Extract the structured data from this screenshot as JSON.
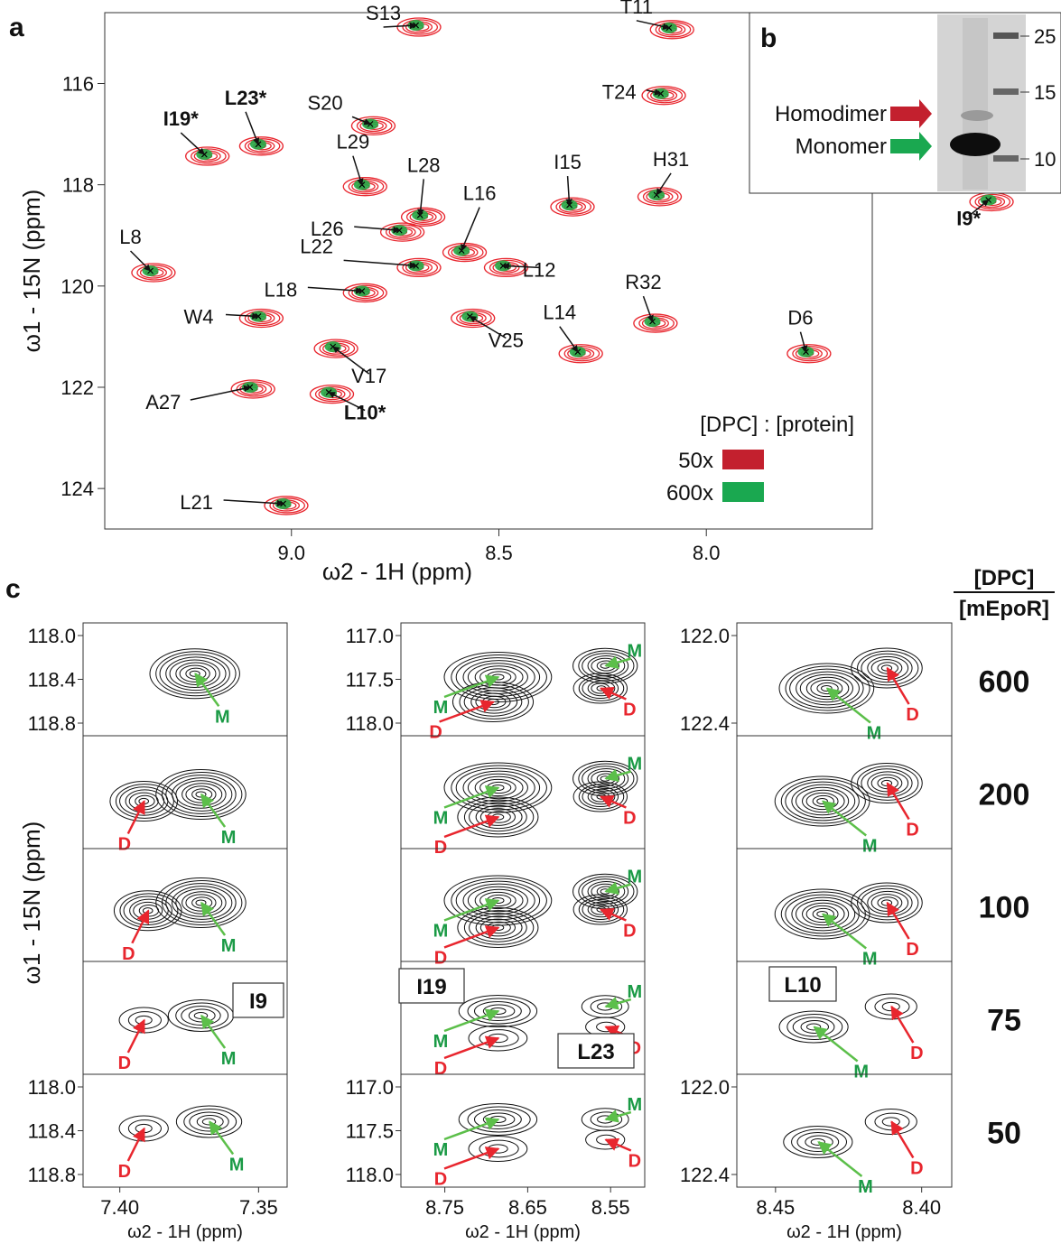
{
  "panel_labels": {
    "a": "a",
    "b": "b",
    "c": "c"
  },
  "colors": {
    "dimer": "#e8262e",
    "monomer": "#22a845",
    "contour": "#111111",
    "arrow_red": "#e8262e",
    "arrow_green": "#5cbf4a",
    "legend_50x": "#c3202e",
    "legend_600x": "#1aa850"
  },
  "chart_data": [
    {
      "type": "scatter",
      "panel": "a",
      "xlabel": "ω2 - 1H (ppm)",
      "ylabel": "ω1 - 15N (ppm)",
      "x_reversed": true,
      "y_reversed": true,
      "xlim": [
        9.45,
        7.6
      ],
      "ylim": [
        114.6,
        124.8
      ],
      "x_ticks": [
        9.0,
        8.5,
        8.0
      ],
      "y_ticks": [
        116,
        118,
        120,
        122,
        124
      ],
      "x_tick_labels": [
        "9.0",
        "8.5",
        "8.0"
      ],
      "y_tick_labels": [
        "116",
        "118",
        "120",
        "122",
        "124"
      ],
      "legend": {
        "title": "[DPC] : [protein]",
        "entries": [
          "50x",
          "600x"
        ],
        "position": "bottom-right"
      },
      "peaks": [
        {
          "label": "S13",
          "x": 8.7,
          "y": 114.85,
          "bold": false
        },
        {
          "label": "T11",
          "x": 8.09,
          "y": 114.9,
          "bold": false
        },
        {
          "label": "T24",
          "x": 8.11,
          "y": 116.2,
          "bold": false
        },
        {
          "label": "S20",
          "x": 8.81,
          "y": 116.8,
          "bold": false
        },
        {
          "label": "I19*",
          "x": 9.21,
          "y": 117.4,
          "bold": true
        },
        {
          "label": "L23*",
          "x": 9.08,
          "y": 117.2,
          "bold": true
        },
        {
          "label": "L29",
          "x": 8.83,
          "y": 118.0,
          "bold": false
        },
        {
          "label": "L28",
          "x": 8.69,
          "y": 118.6,
          "bold": false
        },
        {
          "label": "L26",
          "x": 8.74,
          "y": 118.9,
          "bold": false
        },
        {
          "label": "L16",
          "x": 8.59,
          "y": 119.3,
          "bold": false
        },
        {
          "label": "I15",
          "x": 8.33,
          "y": 118.4,
          "bold": false
        },
        {
          "label": "H31",
          "x": 8.12,
          "y": 118.2,
          "bold": false
        },
        {
          "label": "I9*",
          "x": 7.32,
          "y": 118.3,
          "bold": true
        },
        {
          "label": "L8",
          "x": 9.34,
          "y": 119.7,
          "bold": false
        },
        {
          "label": "L22",
          "x": 8.7,
          "y": 119.6,
          "bold": false
        },
        {
          "label": "L12",
          "x": 8.49,
          "y": 119.6,
          "bold": false
        },
        {
          "label": "L18",
          "x": 8.83,
          "y": 120.1,
          "bold": false
        },
        {
          "label": "W4",
          "x": 9.08,
          "y": 120.6,
          "bold": false
        },
        {
          "label": "V25",
          "x": 8.57,
          "y": 120.6,
          "bold": false
        },
        {
          "label": "R32",
          "x": 8.13,
          "y": 120.7,
          "bold": false
        },
        {
          "label": "L14",
          "x": 8.31,
          "y": 121.3,
          "bold": false
        },
        {
          "label": "D6",
          "x": 7.76,
          "y": 121.3,
          "bold": false
        },
        {
          "label": "V17",
          "x": 8.9,
          "y": 121.2,
          "bold": false
        },
        {
          "label": "A27",
          "x": 9.1,
          "y": 122.0,
          "bold": false
        },
        {
          "label": "L10*",
          "x": 8.91,
          "y": 122.1,
          "bold": true
        },
        {
          "label": "L21",
          "x": 9.02,
          "y": 124.3,
          "bold": false
        }
      ]
    },
    {
      "type": "table",
      "panel": "b",
      "bands": [
        "Homodimer",
        "Monomer"
      ],
      "ladder_markers": [
        "25",
        "15",
        "10"
      ]
    },
    {
      "type": "heatmap",
      "panel": "c",
      "ylabel": "ω1 - 15N (ppm)",
      "conc_header": [
        "[DPC]",
        "[mEpoR]"
      ],
      "concentrations": [
        "600",
        "200",
        "100",
        "75",
        "50"
      ],
      "columns": [
        {
          "residue": [
            "I9"
          ],
          "xlabel": "ω2 - 1H (ppm)",
          "x_tick_labels": [
            "7.40",
            "7.35"
          ],
          "y_tick_labels_top": [
            "118.0",
            "118.4",
            "118.8"
          ],
          "y_tick_labels_bottom": [
            "118.0",
            "118.4",
            "118.8"
          ],
          "peak_labels": [
            "D",
            "M"
          ]
        },
        {
          "residue": [
            "I19",
            "L23"
          ],
          "xlabel": "ω2 - 1H (ppm)",
          "x_tick_labels": [
            "8.75",
            "8.65",
            "8.55"
          ],
          "y_tick_labels_top": [
            "117.0",
            "117.5",
            "118.0"
          ],
          "y_tick_labels_bottom": [
            "117.0",
            "117.5",
            "118.0"
          ],
          "peak_labels": [
            "D",
            "M"
          ]
        },
        {
          "residue": [
            "L10"
          ],
          "xlabel": "ω2 - 1H (ppm)",
          "x_tick_labels": [
            "8.45",
            "8.40"
          ],
          "y_tick_labels_top": [
            "122.0",
            "122.4"
          ],
          "y_tick_labels_bottom": [
            "122.0",
            "122.4"
          ],
          "peak_labels": [
            "D",
            "M"
          ]
        }
      ]
    }
  ]
}
